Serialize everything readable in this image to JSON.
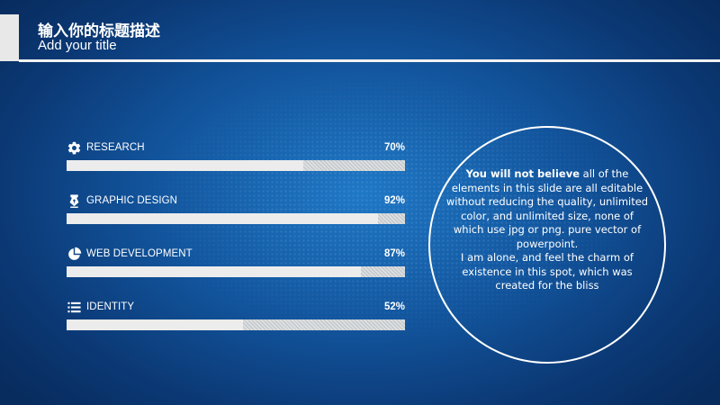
{
  "slide": {
    "title": "输入你的标题描述",
    "subtitle": "Add your title"
  },
  "skills": [
    {
      "label": "RESEARCH",
      "percent_text": "70%",
      "value": 70,
      "icon": "gear-icon"
    },
    {
      "label": "GRAPHIC DESIGN",
      "percent_text": "92%",
      "value": 92,
      "icon": "pen-nib-icon"
    },
    {
      "label": "WEB DEVELOPMENT",
      "percent_text": "87%",
      "value": 87,
      "icon": "pie-chart-icon"
    },
    {
      "label": "IDENTITY",
      "percent_text": "52%",
      "value": 52,
      "icon": "list-icon"
    }
  ],
  "circle": {
    "lead_bold": "You will not believe",
    "body": " all of the elements in this slide are all editable without reducing the quality, unlimited color, and unlimited size, none of which use jpg or png. pure vector of powerpoint.",
    "body2": "I am alone, and feel the charm of existence in this spot, which was created for the bliss"
  },
  "colors": {
    "background": "#12549c",
    "bar_fill": "#ececec",
    "bar_track": "#cfd3d6",
    "text": "#ffffff"
  }
}
